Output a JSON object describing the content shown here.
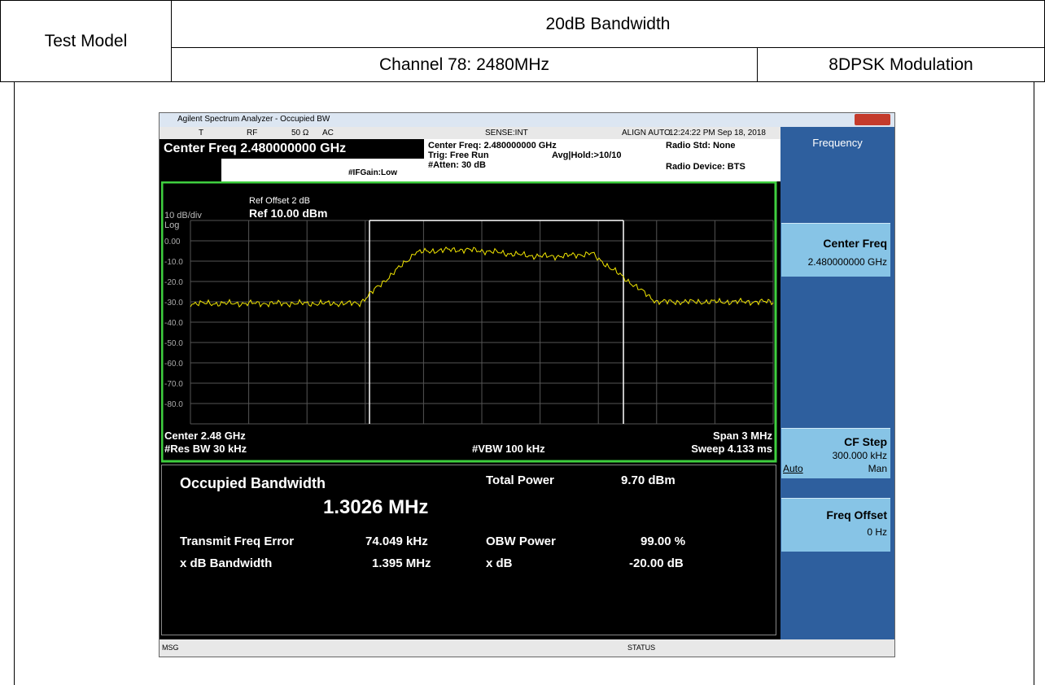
{
  "header": {
    "label": "Test Model",
    "title": "20dB Bandwidth",
    "channel": "Channel 78: 2480MHz",
    "modulation": "8DPSK Modulation"
  },
  "window": {
    "title": "Agilent Spectrum Analyzer - Occupied BW"
  },
  "status_bar": [
    "T",
    "RF",
    "50 Ω",
    "AC",
    "SENSE:INT",
    "ALIGN AUTO",
    "12:24:22 PM Sep 18, 2018"
  ],
  "settings": {
    "center": "Center Freq 2.480000000 GHz",
    "if_gain": "#IFGain:Low",
    "center_freq": "Center Freq: 2.480000000 GHz",
    "trig": "Trig: Free Run",
    "avg": "Avg|Hold:>10/10",
    "atten": "#Atten: 30 dB",
    "radio_std": "Radio Std: None",
    "radio_device": "Radio Device: BTS"
  },
  "plot": {
    "ref_offset": "Ref Offset 2 dB",
    "ref_level": "Ref 10.00 dBm",
    "scale": "10 dB/div",
    "scale_type": "Log",
    "y_labels": [
      "0.00",
      "-10.0",
      "-20.0",
      "-30.0",
      "-40.0",
      "-50.0",
      "-60.0",
      "-70.0",
      "-80.0"
    ],
    "center": "Center 2.48 GHz",
    "span": "Span 3 MHz",
    "res_bw": "#Res BW 30 kHz",
    "vbw": "#VBW 100 kHz",
    "sweep": "Sweep 4.133 ms"
  },
  "results": {
    "title": "Occupied Bandwidth",
    "obw": "1.3026 MHz",
    "total_power_label": "Total Power",
    "total_power": "9.70 dBm",
    "freq_error_label": "Transmit Freq Error",
    "freq_error": "74.049 kHz",
    "obw_power_label": "OBW Power",
    "obw_power": "99.00 %",
    "xdb_bw_label": "x dB Bandwidth",
    "xdb_bw": "1.395 MHz",
    "xdb_label": "x dB",
    "xdb": "-20.00 dB"
  },
  "softkeys": {
    "menu": "Frequency",
    "center_freq": {
      "label": "Center Freq",
      "value": "2.480000000 GHz"
    },
    "cf_step": {
      "label": "CF Step",
      "value": "300.000 kHz",
      "auto": "Auto",
      "man": "Man"
    },
    "freq_offset": {
      "label": "Freq Offset",
      "value": "0 Hz"
    }
  },
  "footer": {
    "msg": "MSG",
    "status": "STATUS"
  }
}
